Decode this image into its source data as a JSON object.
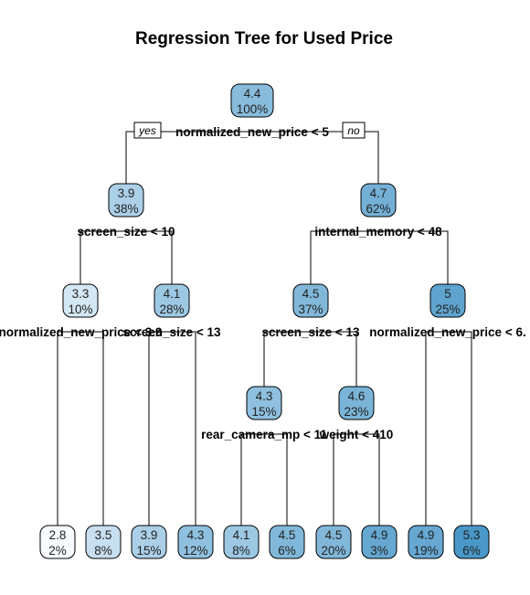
{
  "title": "Regression Tree for Used Price",
  "yes_label": "yes",
  "no_label": "no",
  "colors": {
    "light": "#f7fbff",
    "dark": "#4a98c9",
    "stroke": "#000000"
  },
  "nodes": [
    {
      "id": "n1",
      "value": "4.4",
      "percent": "100%",
      "split": "normalized_new_price < 5",
      "v": 4.4
    },
    {
      "id": "n2",
      "value": "3.9",
      "percent": "38%",
      "split": "screen_size < 10",
      "v": 3.9
    },
    {
      "id": "n3",
      "value": "4.7",
      "percent": "62%",
      "split": "internal_memory < 48",
      "v": 4.7
    },
    {
      "id": "n4",
      "value": "3.3",
      "percent": "10%",
      "split": "normalized_new_price < 3.9",
      "v": 3.3
    },
    {
      "id": "n5",
      "value": "4.1",
      "percent": "28%",
      "split": "screen_size < 13",
      "v": 4.1
    },
    {
      "id": "n6",
      "value": "4.5",
      "percent": "37%",
      "split": "screen_size < 13",
      "v": 4.5
    },
    {
      "id": "n7",
      "value": "5",
      "percent": "25%",
      "split": "normalized_new_price < 6.",
      "v": 5.0
    },
    {
      "id": "n8",
      "value": "4.3",
      "percent": "15%",
      "split": "rear_camera_mp < 11",
      "v": 4.3
    },
    {
      "id": "n9",
      "value": "4.6",
      "percent": "23%",
      "split": "weight < 410",
      "v": 4.6
    },
    {
      "id": "l1",
      "value": "2.8",
      "percent": "2%",
      "v": 2.8
    },
    {
      "id": "l2",
      "value": "3.5",
      "percent": "8%",
      "v": 3.5
    },
    {
      "id": "l3",
      "value": "3.9",
      "percent": "15%",
      "v": 3.9
    },
    {
      "id": "l4",
      "value": "4.3",
      "percent": "12%",
      "v": 4.3
    },
    {
      "id": "l5",
      "value": "4.1",
      "percent": "8%",
      "v": 4.1
    },
    {
      "id": "l6",
      "value": "4.5",
      "percent": "6%",
      "v": 4.5
    },
    {
      "id": "l7",
      "value": "4.5",
      "percent": "20%",
      "v": 4.5
    },
    {
      "id": "l8",
      "value": "4.9",
      "percent": "3%",
      "v": 4.9
    },
    {
      "id": "l9",
      "value": "4.9",
      "percent": "19%",
      "v": 4.9
    },
    {
      "id": "l10",
      "value": "5.3",
      "percent": "6%",
      "v": 5.3
    }
  ],
  "edges": [
    [
      "n1",
      "n2"
    ],
    [
      "n1",
      "n3"
    ],
    [
      "n2",
      "n4"
    ],
    [
      "n2",
      "n5"
    ],
    [
      "n3",
      "n6"
    ],
    [
      "n3",
      "n7"
    ],
    [
      "n4",
      "l1"
    ],
    [
      "n4",
      "l2"
    ],
    [
      "n5",
      "l3"
    ],
    [
      "n5",
      "l4"
    ],
    [
      "n6",
      "n8"
    ],
    [
      "n6",
      "n9"
    ],
    [
      "n8",
      "l5"
    ],
    [
      "n8",
      "l6"
    ],
    [
      "n9",
      "l7"
    ],
    [
      "n9",
      "l8"
    ],
    [
      "n7",
      "l9"
    ],
    [
      "n7",
      "l10"
    ]
  ]
}
